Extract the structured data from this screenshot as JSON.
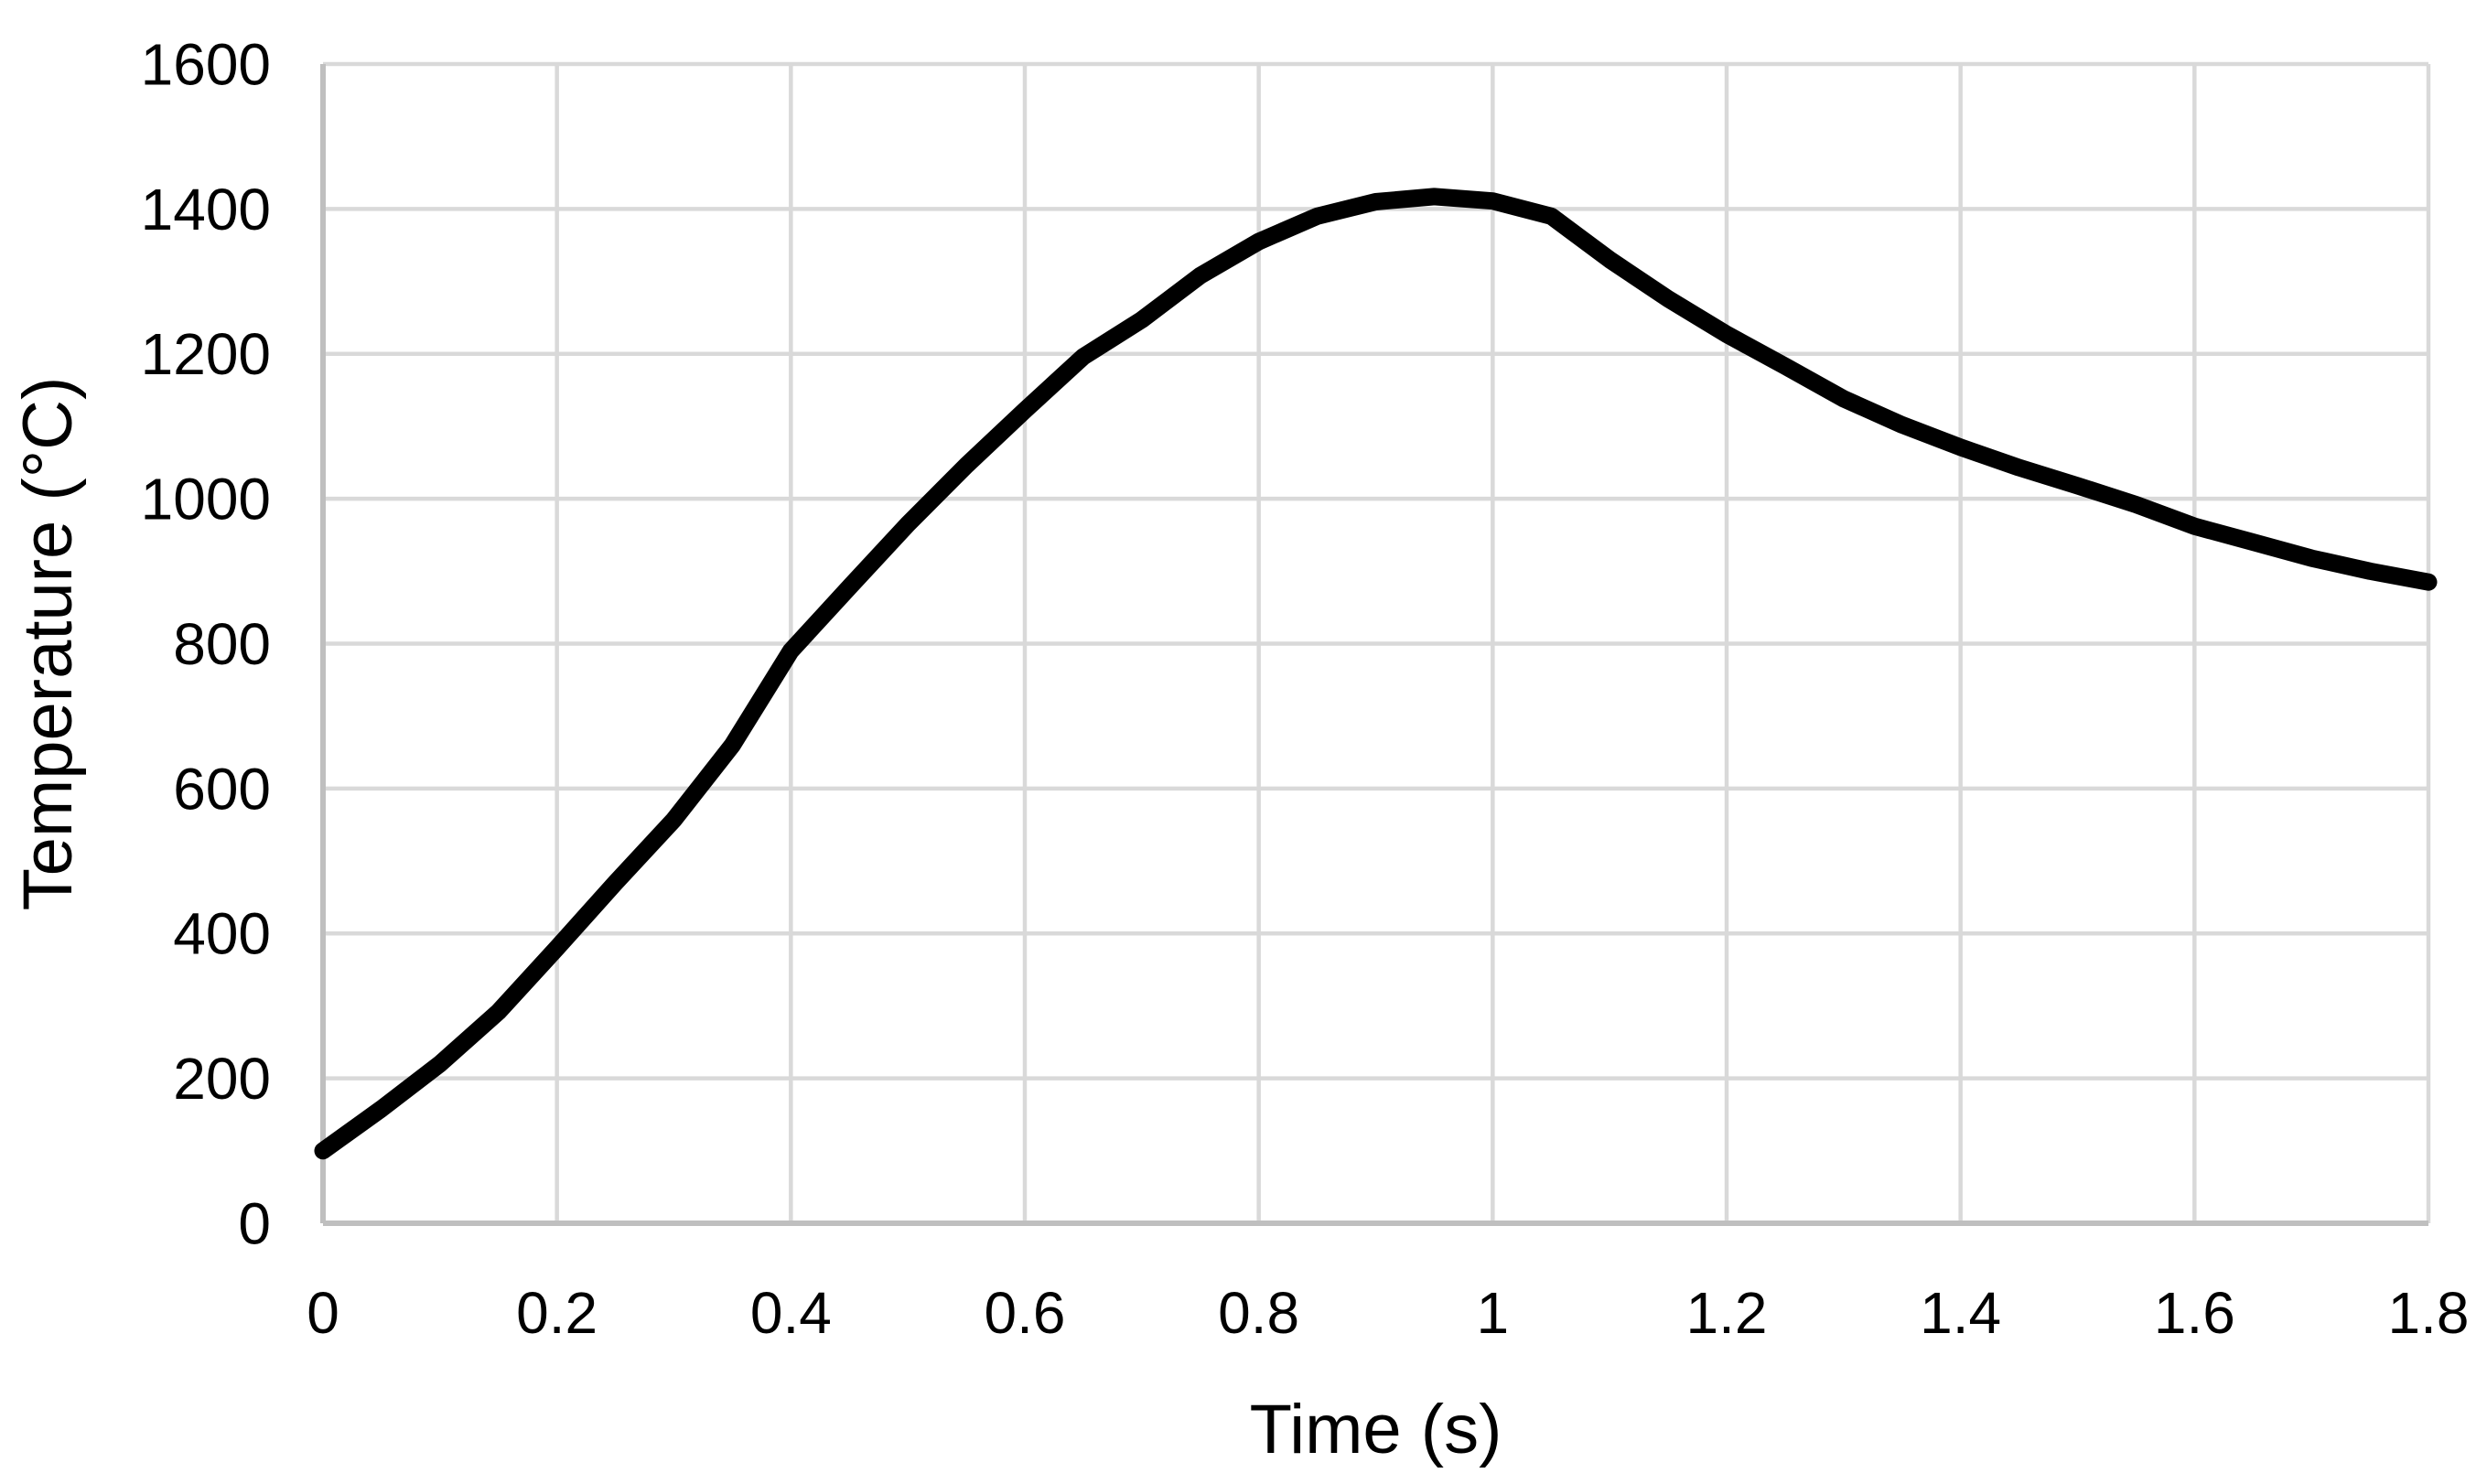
{
  "chart_data": {
    "type": "line",
    "title": "",
    "xlabel": "Time (s)",
    "ylabel": "Temperature (°C)",
    "xlim": [
      0,
      1.8
    ],
    "ylim": [
      0,
      1600
    ],
    "grid": true,
    "legend_position": "none",
    "x_tick_values": [
      0,
      0.2,
      0.4,
      0.6,
      0.8,
      1,
      1.2,
      1.4,
      1.6,
      1.8
    ],
    "x_tick_labels": [
      "0",
      "0.2",
      "0.4",
      "0.6",
      "0.8",
      "1",
      "1.2",
      "1.4",
      "1.6",
      "1.8"
    ],
    "y_tick_values": [
      0,
      200,
      400,
      600,
      800,
      1000,
      1200,
      1400,
      1600
    ],
    "y_tick_labels": [
      "0",
      "200",
      "400",
      "600",
      "800",
      "1000",
      "1200",
      "1400",
      "1600"
    ],
    "series": [
      {
        "name": "Temperature",
        "color": "#000000",
        "line_width": 19,
        "points": [
          [
            0.0,
            100
          ],
          [
            0.05,
            158
          ],
          [
            0.1,
            220
          ],
          [
            0.15,
            292
          ],
          [
            0.2,
            380
          ],
          [
            0.25,
            470
          ],
          [
            0.3,
            557
          ],
          [
            0.35,
            660
          ],
          [
            0.4,
            790
          ],
          [
            0.45,
            878
          ],
          [
            0.5,
            965
          ],
          [
            0.55,
            1046
          ],
          [
            0.6,
            1122
          ],
          [
            0.65,
            1196
          ],
          [
            0.7,
            1247
          ],
          [
            0.75,
            1308
          ],
          [
            0.8,
            1355
          ],
          [
            0.85,
            1390
          ],
          [
            0.9,
            1410
          ],
          [
            0.95,
            1417
          ],
          [
            1.0,
            1411
          ],
          [
            1.05,
            1390
          ],
          [
            1.1,
            1330
          ],
          [
            1.15,
            1276
          ],
          [
            1.2,
            1227
          ],
          [
            1.25,
            1183
          ],
          [
            1.3,
            1138
          ],
          [
            1.35,
            1102
          ],
          [
            1.4,
            1071
          ],
          [
            1.45,
            1043
          ],
          [
            1.5,
            1018
          ],
          [
            1.55,
            992
          ],
          [
            1.6,
            962
          ],
          [
            1.65,
            940
          ],
          [
            1.7,
            918
          ],
          [
            1.75,
            900
          ],
          [
            1.8,
            885
          ]
        ]
      }
    ],
    "annotations": {
      "peak": {
        "t": 0.95,
        "temperature": 1417
      },
      "kink": {
        "t": 1.05,
        "temperature": 1390
      },
      "start": {
        "t": 0,
        "temperature": 100
      },
      "end": {
        "t": 1.8,
        "temperature": 885
      }
    }
  },
  "colors": {
    "background": "#ffffff",
    "gridline": "#d9d9d9",
    "axis_line": "#bfbfbf",
    "text": "#000000",
    "line": "#000000"
  }
}
